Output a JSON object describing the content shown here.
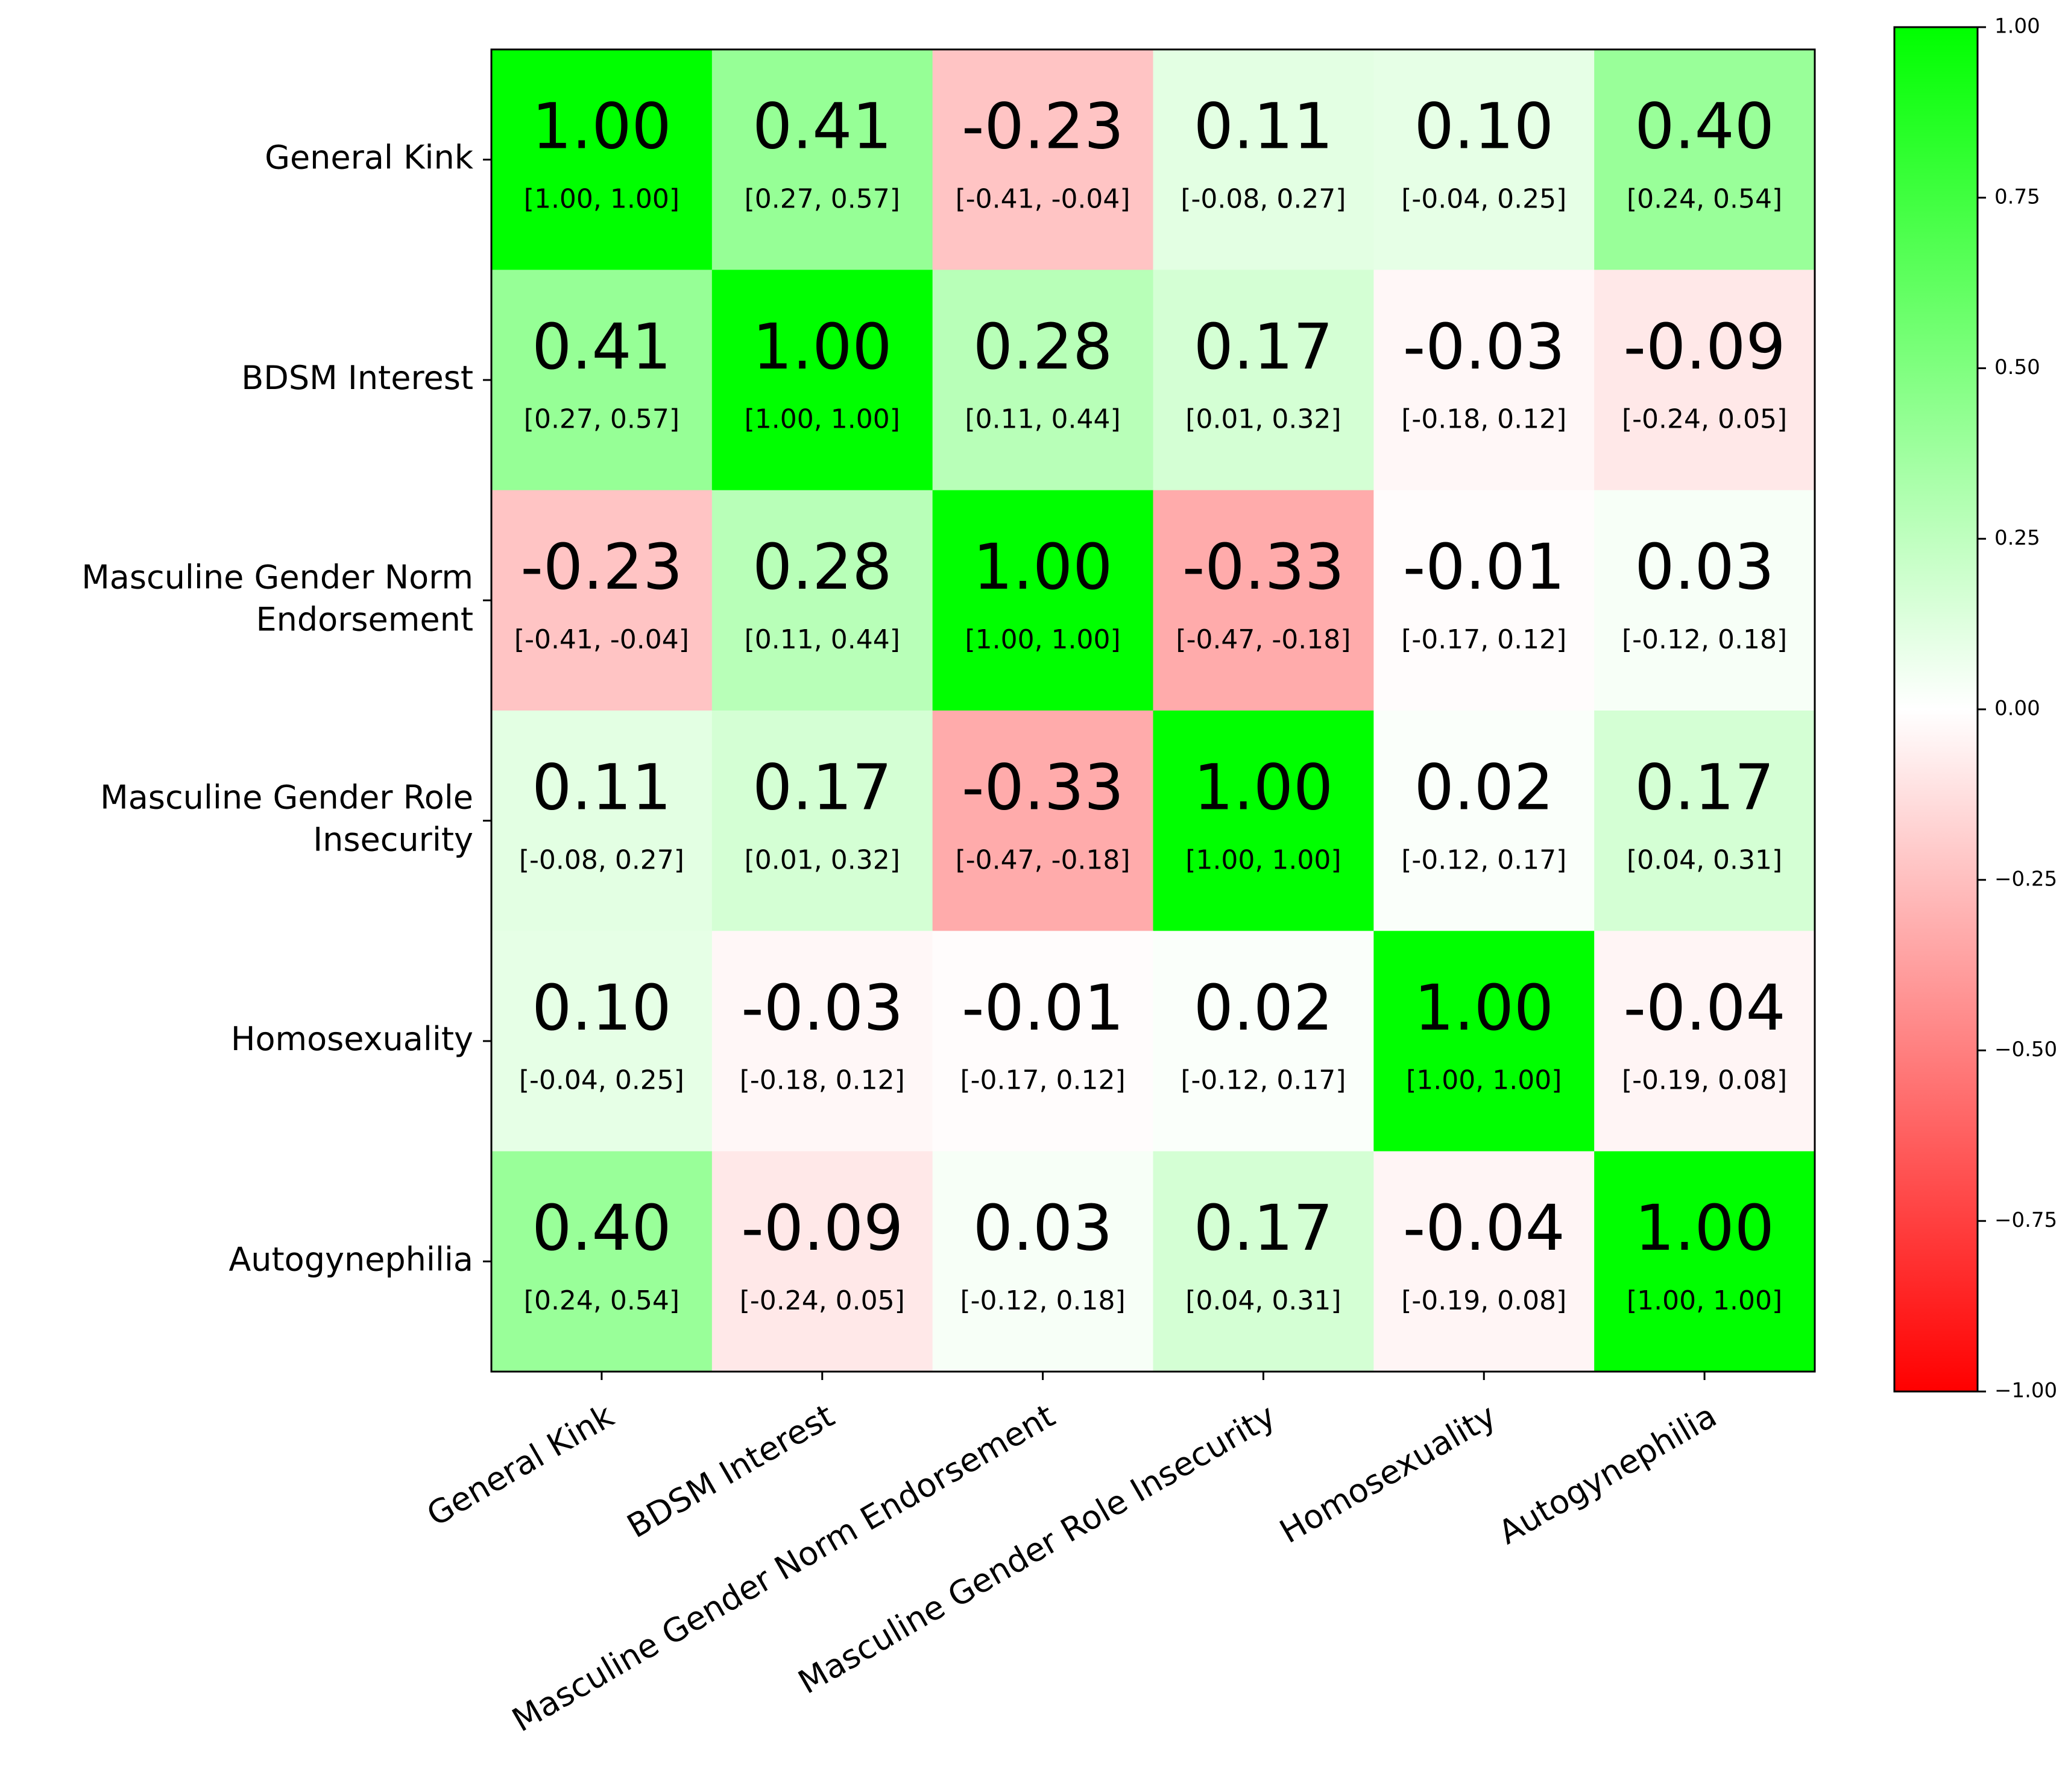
{
  "chart_data": {
    "type": "heatmap",
    "variables": [
      [
        "General Kink"
      ],
      [
        "BDSM Interest"
      ],
      [
        "Masculine Gender Norm",
        "Endorsement"
      ],
      [
        "Masculine Gender Role",
        "Insecurity"
      ],
      [
        "Homosexuality"
      ],
      [
        "Autogynephilia"
      ]
    ],
    "x_labels": [
      "General Kink",
      "BDSM Interest",
      "Masculine Gender Norm Endorsement",
      "Masculine Gender Role Insecurity",
      "Homosexuality",
      "Autogynephilia"
    ],
    "values": [
      [
        1.0,
        0.41,
        -0.23,
        0.11,
        0.1,
        0.4
      ],
      [
        0.41,
        1.0,
        0.28,
        0.17,
        -0.03,
        -0.09
      ],
      [
        -0.23,
        0.28,
        1.0,
        -0.33,
        -0.01,
        0.03
      ],
      [
        0.11,
        0.17,
        -0.33,
        1.0,
        0.02,
        0.17
      ],
      [
        0.1,
        -0.03,
        -0.01,
        0.02,
        1.0,
        -0.04
      ],
      [
        0.4,
        -0.09,
        0.03,
        0.17,
        -0.04,
        1.0
      ]
    ],
    "value_labels": [
      [
        "1.00",
        "0.41",
        "-0.23",
        "0.11",
        "0.10",
        "0.40"
      ],
      [
        "0.41",
        "1.00",
        "0.28",
        "0.17",
        "-0.03",
        "-0.09"
      ],
      [
        "-0.23",
        "0.28",
        "1.00",
        "-0.33",
        "-0.01",
        "0.03"
      ],
      [
        "0.11",
        "0.17",
        "-0.33",
        "1.00",
        "0.02",
        "0.17"
      ],
      [
        "0.10",
        "-0.03",
        "-0.01",
        "0.02",
        "1.00",
        "-0.04"
      ],
      [
        "0.40",
        "-0.09",
        "0.03",
        "0.17",
        "-0.04",
        "1.00"
      ]
    ],
    "ci_labels": [
      [
        "[1.00, 1.00]",
        "[0.27, 0.57]",
        "[-0.41, -0.04]",
        "[-0.08, 0.27]",
        "[-0.04, 0.25]",
        "[0.24, 0.54]"
      ],
      [
        "[0.27, 0.57]",
        "[1.00, 1.00]",
        "[0.11, 0.44]",
        "[0.01, 0.32]",
        "[-0.18, 0.12]",
        "[-0.24, 0.05]"
      ],
      [
        "[-0.41, -0.04]",
        "[0.11, 0.44]",
        "[1.00, 1.00]",
        "[-0.47, -0.18]",
        "[-0.17, 0.12]",
        "[-0.12, 0.18]"
      ],
      [
        "[-0.08, 0.27]",
        "[0.01, 0.32]",
        "[-0.47, -0.18]",
        "[1.00, 1.00]",
        "[-0.12, 0.17]",
        "[0.04, 0.31]"
      ],
      [
        "[-0.04, 0.25]",
        "[-0.18, 0.12]",
        "[-0.17, 0.12]",
        "[-0.12, 0.17]",
        "[1.00, 1.00]",
        "[-0.19, 0.08]"
      ],
      [
        "[0.24, 0.54]",
        "[-0.24, 0.05]",
        "[-0.12, 0.18]",
        "[0.04, 0.31]",
        "[-0.19, 0.08]",
        "[1.00, 1.00]"
      ]
    ],
    "colormap": {
      "min_color": "#ff0000",
      "mid_color": "#ffffff",
      "max_color": "#00ff00",
      "vmin": -1.0,
      "vmax": 1.0
    },
    "colorbar_ticks": [
      {
        "value": 1.0,
        "label": "1.00"
      },
      {
        "value": 0.75,
        "label": "0.75"
      },
      {
        "value": 0.5,
        "label": "0.50"
      },
      {
        "value": 0.25,
        "label": "0.25"
      },
      {
        "value": 0.0,
        "label": "0.00"
      },
      {
        "value": -0.25,
        "label": "−0.25"
      },
      {
        "value": -0.5,
        "label": "−0.50"
      },
      {
        "value": -0.75,
        "label": "−0.75"
      },
      {
        "value": -1.0,
        "label": "−1.00"
      }
    ]
  }
}
